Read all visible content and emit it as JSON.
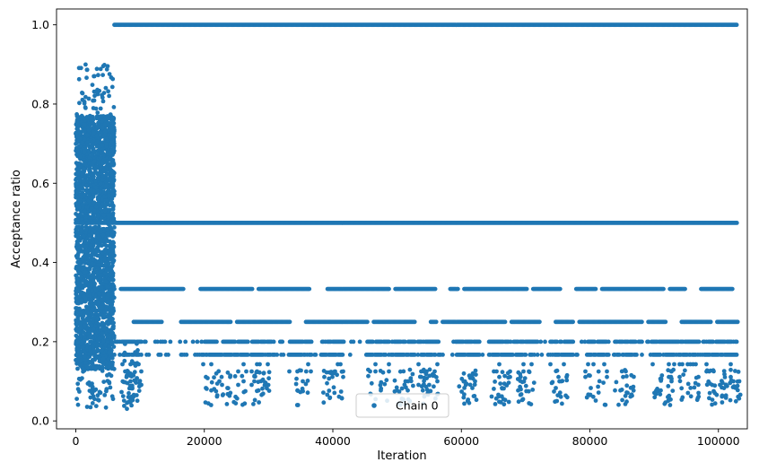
{
  "chart_data": {
    "type": "scatter",
    "title": "",
    "xlabel": "Iteration",
    "ylabel": "Acceptance ratio",
    "xlim": [
      -3000,
      104500
    ],
    "ylim": [
      -0.02,
      1.04
    ],
    "xticks": [
      0,
      20000,
      40000,
      60000,
      80000,
      100000
    ],
    "xtick_labels": [
      "0",
      "20000",
      "40000",
      "60000",
      "80000",
      "100000"
    ],
    "yticks": [
      0.0,
      0.2,
      0.4,
      0.6,
      0.8,
      1.0
    ],
    "ytick_labels": [
      "0.0",
      "0.2",
      "0.4",
      "0.6",
      "0.8",
      "1.0"
    ],
    "grid": false,
    "legend": {
      "position": "lower-center",
      "entries": [
        "Chain 0"
      ]
    },
    "series": [
      {
        "name": "Chain 0",
        "color": "#1f77b4",
        "marker": "circle",
        "burn_in_region": {
          "x_range": [
            0,
            6000
          ],
          "y_range": [
            0.03,
            0.9
          ]
        },
        "levels": [
          {
            "y": 1.0,
            "x_range": [
              6000,
              103000
            ],
            "density": "continuous"
          },
          {
            "y": 0.5,
            "x_range": [
              0,
              103000
            ],
            "density": "continuous"
          },
          {
            "y": 0.333,
            "x_range": [
              6000,
              103000
            ],
            "density": "dense-with-gaps"
          },
          {
            "y": 0.25,
            "x_range": [
              9000,
              103000
            ],
            "density": "dense-with-gaps"
          },
          {
            "y": 0.2,
            "x_range": [
              6000,
              103000
            ],
            "density": "clustered"
          },
          {
            "y": 0.167,
            "x_range": [
              6000,
              103000
            ],
            "density": "clustered"
          },
          {
            "y": 0.143,
            "x_range": [
              6000,
              103000
            ],
            "density": "sparse"
          },
          {
            "y": 0.125,
            "x_range": [
              6000,
              103000
            ],
            "density": "sparse"
          },
          {
            "y": 0.111,
            "x_range": [
              6000,
              103000
            ],
            "density": "sparse"
          },
          {
            "y": 0.1,
            "x_range": [
              6000,
              103000
            ],
            "density": "sparse"
          },
          {
            "y": 0.091,
            "x_range": [
              6000,
              103000
            ],
            "density": "sparse"
          },
          {
            "y": 0.083,
            "x_range": [
              6000,
              103000
            ],
            "density": "sparse"
          },
          {
            "y": 0.077,
            "x_range": [
              6000,
              103000
            ],
            "density": "sparse"
          }
        ],
        "clusters_x": [
          8500,
          21500,
          25000,
          29000,
          35000,
          40000,
          47000,
          51000,
          55000,
          61000,
          66000,
          70000,
          75500,
          81000,
          85500,
          91500,
          95500,
          99500,
          102000
        ]
      }
    ]
  }
}
